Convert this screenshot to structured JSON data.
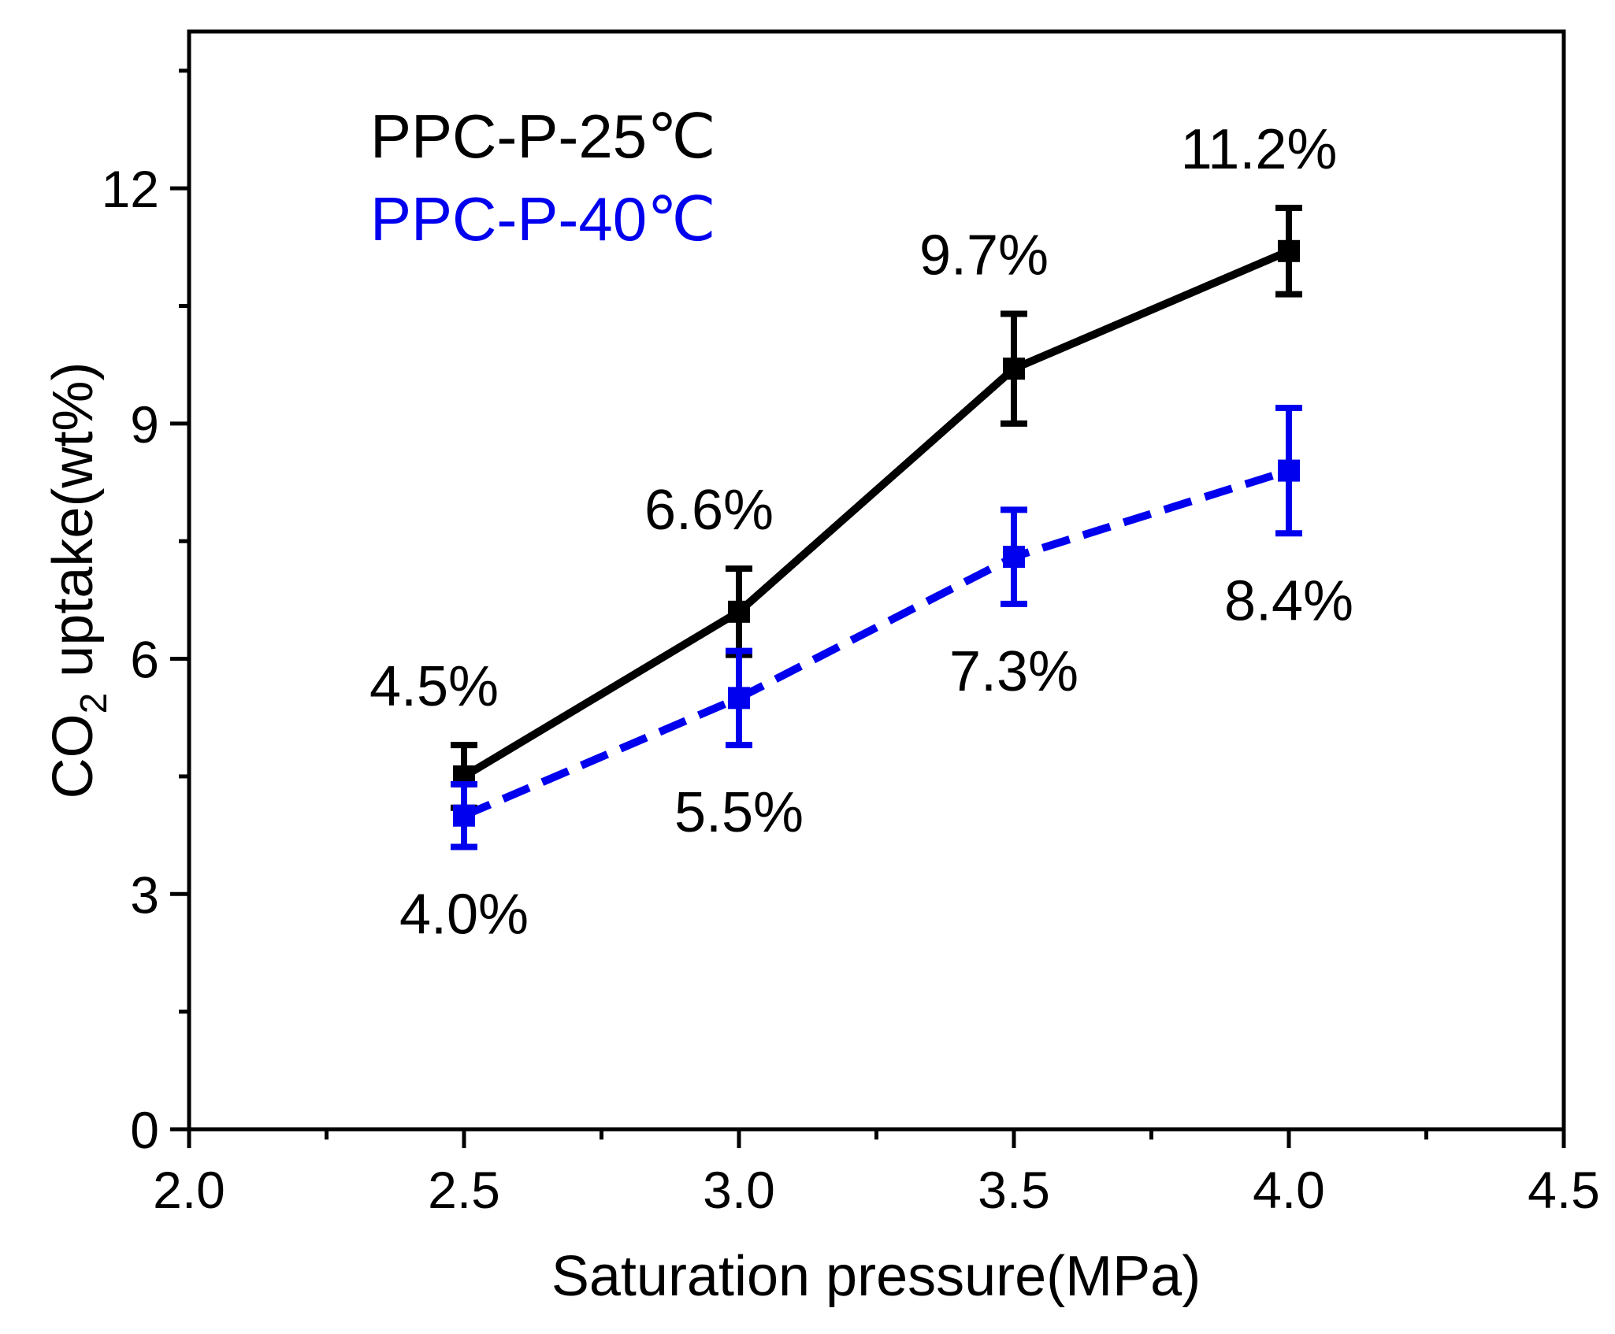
{
  "chart_data": {
    "type": "line",
    "xlabel": "Saturation pressure(MPa)",
    "ylabel_main": "CO",
    "ylabel_sub": "2",
    "ylabel_rest": " uptake(wt%)",
    "xlim": [
      2.0,
      4.5
    ],
    "ylim": [
      0,
      14
    ],
    "xticks": [
      2.0,
      2.5,
      3.0,
      3.5,
      4.0,
      4.5
    ],
    "xtick_labels": [
      "2.0",
      "2.5",
      "3.0",
      "3.5",
      "4.0",
      "4.5"
    ],
    "yticks": [
      0,
      3,
      6,
      9,
      12
    ],
    "ytick_labels": [
      "0",
      "3",
      "6",
      "9",
      "12"
    ],
    "grid": false,
    "legend_position": "top-left",
    "series": [
      {
        "name": "PPC-P-25℃",
        "color": "#000000",
        "line_style": "solid",
        "x": [
          2.5,
          3.0,
          3.5,
          4.0
        ],
        "y": [
          4.5,
          6.6,
          9.7,
          11.2
        ],
        "error": [
          0.4,
          0.55,
          0.7,
          0.55
        ],
        "point_labels": [
          "4.5%",
          "6.6%",
          "9.7%",
          "11.2%"
        ],
        "label_placement": [
          "above",
          "above",
          "above",
          "above"
        ]
      },
      {
        "name": "PPC-P-40℃",
        "color": "#0000ee",
        "line_style": "dashed",
        "x": [
          2.5,
          3.0,
          3.5,
          4.0
        ],
        "y": [
          4.0,
          5.5,
          7.3,
          8.4
        ],
        "error": [
          0.4,
          0.6,
          0.6,
          0.8
        ],
        "point_labels": [
          "4.0%",
          "5.5%",
          "7.3%",
          "8.4%"
        ],
        "label_placement": [
          "below",
          "below",
          "below",
          "below"
        ]
      }
    ]
  }
}
